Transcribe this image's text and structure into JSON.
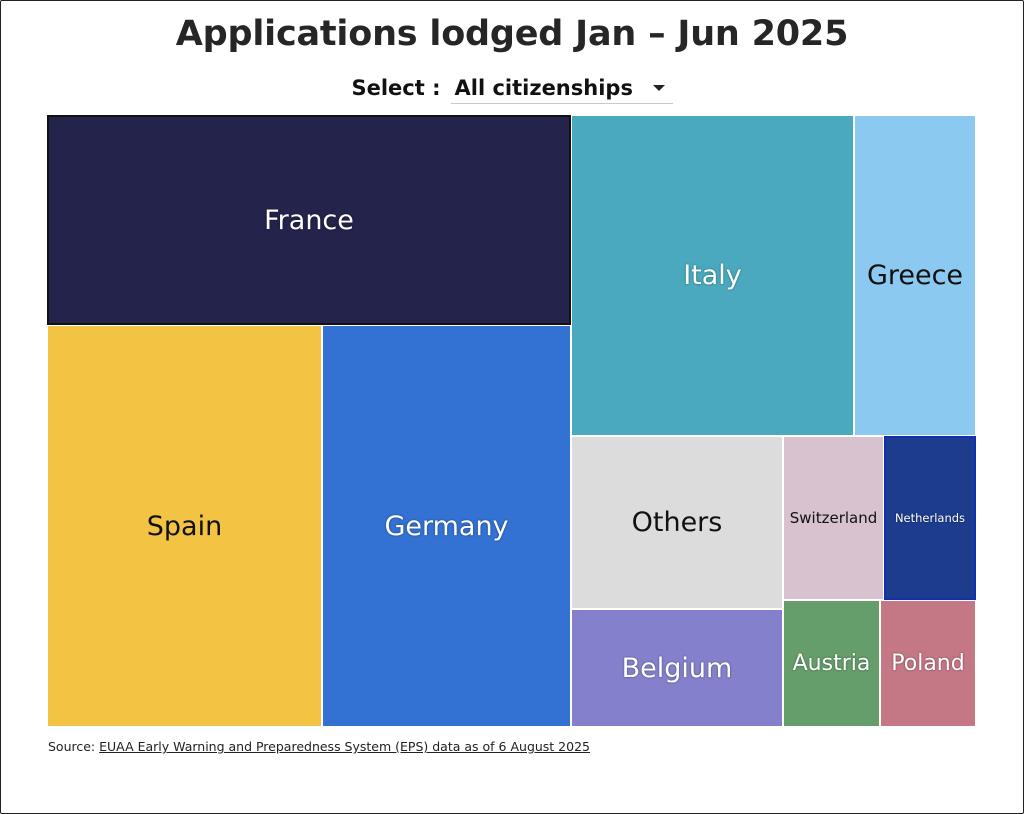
{
  "title": "Applications lodged Jan – Jun 2025",
  "select": {
    "label": "Select :",
    "value": "All citizenships"
  },
  "source": {
    "prefix": "Source: ",
    "link_text": "EUAA Early Warning and Preparedness System (EPS) data as of 6 August 2025"
  },
  "chart_data": {
    "type": "treemap",
    "title": "Applications lodged Jan – Jun 2025",
    "tiles": [
      {
        "label": "France",
        "color": "#23234b",
        "text_color": "#ffffff",
        "size": "large"
      },
      {
        "label": "Spain",
        "color": "#f3c444",
        "text_color": "#111111",
        "size": "large"
      },
      {
        "label": "Germany",
        "color": "#3371d3",
        "text_color": "#ffffff",
        "size": "large"
      },
      {
        "label": "Italy",
        "color": "#4aa9be",
        "text_color": "#ffffff",
        "size": "large"
      },
      {
        "label": "Greece",
        "color": "#8bc9f1",
        "text_color": "#111111",
        "size": "large"
      },
      {
        "label": "Others",
        "color": "#dcdcdc",
        "text_color": "#111111",
        "size": "large"
      },
      {
        "label": "Switzerland",
        "color": "#d8c2cf",
        "text_color": "#111111",
        "size": "small"
      },
      {
        "label": "Netherlands",
        "color": "#1e3c8e",
        "text_color": "#ffffff",
        "size": "tiny"
      },
      {
        "label": "Belgium",
        "color": "#8480cc",
        "text_color": "#ffffff",
        "size": "large"
      },
      {
        "label": "Austria",
        "color": "#659d6b",
        "text_color": "#ffffff",
        "size": "medium"
      },
      {
        "label": "Poland",
        "color": "#c47785",
        "text_color": "#ffffff",
        "size": "medium"
      }
    ]
  }
}
